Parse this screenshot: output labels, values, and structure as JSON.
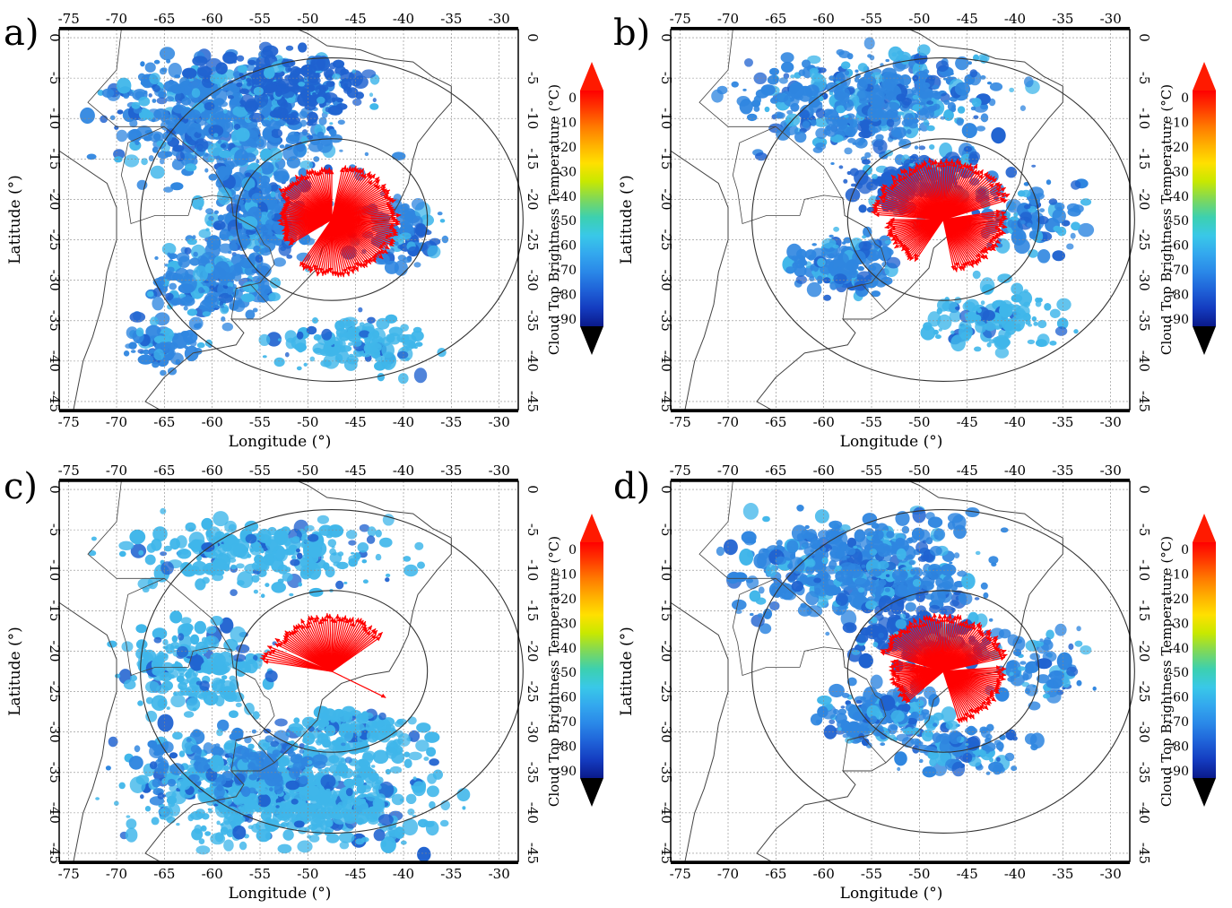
{
  "figure": {
    "panels": [
      {
        "id": "a",
        "label": "a)"
      },
      {
        "id": "b",
        "label": "b)"
      },
      {
        "id": "c",
        "label": "c)"
      },
      {
        "id": "d",
        "label": "d)"
      }
    ],
    "xlabel": "Longitude (°)",
    "ylabel": "Latitude (°)",
    "colorbar_label": "Cloud Top Brightness Temperature (°C)",
    "lon_ticks": [
      "-75",
      "-70",
      "-65",
      "-60",
      "-55",
      "-50",
      "-45",
      "-40",
      "-35",
      "-30"
    ],
    "lat_ticks": [
      "0",
      "-5",
      "-10",
      "-15",
      "-20",
      "-25",
      "-30",
      "-35",
      "-40",
      "-45"
    ],
    "colorbar_ticks": [
      "0",
      "-10",
      "-20",
      "-30",
      "-40",
      "-50",
      "-60",
      "-70",
      "-80",
      "-90"
    ],
    "map_extent": {
      "lon": [
        -76,
        -28
      ],
      "lat": [
        -46,
        1
      ]
    },
    "center": {
      "lon": -47.5,
      "lat": -22.5
    },
    "circle_radii_deg": [
      10,
      20
    ],
    "colormap": [
      "#ff0000",
      "#ff3a00",
      "#ff7a00",
      "#ffb000",
      "#ffe000",
      "#c8e800",
      "#7ed85a",
      "#3cd0b0",
      "#39c8e8",
      "#33a8ee",
      "#2a88e8",
      "#1f62d8",
      "#143cc0",
      "#0a1a8a"
    ],
    "colors": {
      "cloud_warm": "#3fb6ea",
      "cloud_mid": "#2f86e0",
      "cloud_cold": "#1f62d0",
      "vectors": "#ff0000",
      "coastline": "#444444",
      "circle": "#333333",
      "grid": "#888888"
    },
    "vectors": {
      "a": [
        {
          "start": -120,
          "end": 80,
          "len": 7.0
        },
        {
          "start": 90,
          "end": 150,
          "len": 6.5
        },
        {
          "start": 150,
          "end": 215,
          "len": 5.5
        }
      ],
      "b": [
        {
          "start": 20,
          "end": 175,
          "len": 7.5
        },
        {
          "start": -80,
          "end": 10,
          "len": 6.5
        },
        {
          "start": 180,
          "end": 240,
          "len": 6.0
        }
      ],
      "c": [
        {
          "start": 40,
          "end": 150,
          "len": 7.0
        },
        {
          "start": -30,
          "end": -30,
          "len": 7.0
        },
        {
          "start": 155,
          "end": 170,
          "len": 7.5
        }
      ],
      "d": [
        {
          "start": 15,
          "end": 160,
          "len": 7.0
        },
        {
          "start": -75,
          "end": 5,
          "len": 6.5
        },
        {
          "start": 165,
          "end": 225,
          "len": 5.5
        }
      ]
    }
  }
}
